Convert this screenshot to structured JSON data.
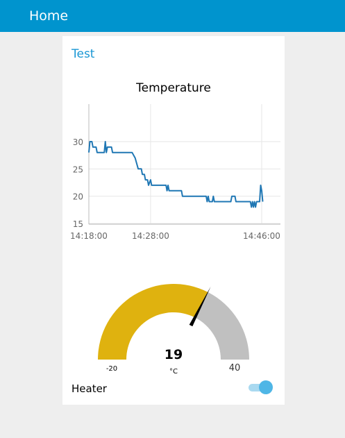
{
  "header": {
    "title": "Home"
  },
  "group": {
    "title": "Test"
  },
  "chart_data": {
    "type": "line",
    "title": "Temperature",
    "xlabel": "",
    "ylabel": "",
    "ylim": [
      15,
      30
    ],
    "yticks": [
      "30",
      "25",
      "20",
      "15"
    ],
    "xticks": [
      "14:18:00",
      "14:28:00",
      "14:46:00"
    ],
    "grid": true,
    "color": "#1f77b4",
    "series": [
      {
        "values": [
          [
            "14:18:00",
            28
          ],
          [
            "14:18:10",
            30
          ],
          [
            "14:18:30",
            30
          ],
          [
            "14:18:40",
            29
          ],
          [
            "14:19:10",
            29
          ],
          [
            "14:19:20",
            28
          ],
          [
            "14:20:30",
            28
          ],
          [
            "14:20:40",
            30
          ],
          [
            "14:20:50",
            28
          ],
          [
            "14:21:00",
            29
          ],
          [
            "14:21:40",
            29
          ],
          [
            "14:21:50",
            28
          ],
          [
            "14:25:00",
            28
          ],
          [
            "14:25:30",
            27
          ],
          [
            "14:26:00",
            25
          ],
          [
            "14:26:30",
            25
          ],
          [
            "14:26:40",
            24
          ],
          [
            "14:27:00",
            24
          ],
          [
            "14:27:10",
            23
          ],
          [
            "14:27:30",
            23
          ],
          [
            "14:27:40",
            22
          ],
          [
            "14:28:00",
            23
          ],
          [
            "14:28:10",
            22
          ],
          [
            "14:30:30",
            22
          ],
          [
            "14:30:40",
            21
          ],
          [
            "14:30:50",
            22
          ],
          [
            "14:31:00",
            21
          ],
          [
            "14:33:00",
            21
          ],
          [
            "14:33:10",
            20
          ],
          [
            "14:37:00",
            20
          ],
          [
            "14:37:10",
            19
          ],
          [
            "14:37:20",
            20
          ],
          [
            "14:37:30",
            19
          ],
          [
            "14:38:00",
            19
          ],
          [
            "14:38:10",
            20
          ],
          [
            "14:38:20",
            19
          ],
          [
            "14:41:00",
            19
          ],
          [
            "14:41:10",
            20
          ],
          [
            "14:41:40",
            20
          ],
          [
            "14:41:50",
            19
          ],
          [
            "14:44:10",
            19
          ],
          [
            "14:44:20",
            18
          ],
          [
            "14:44:30",
            19
          ],
          [
            "14:44:40",
            18
          ],
          [
            "14:44:50",
            19
          ],
          [
            "14:45:00",
            18
          ],
          [
            "14:45:10",
            19
          ],
          [
            "14:45:40",
            19
          ],
          [
            "14:45:50",
            22
          ],
          [
            "14:46:00",
            21
          ],
          [
            "14:46:10",
            19
          ]
        ]
      }
    ]
  },
  "gauge": {
    "value": "19",
    "unit": "°C",
    "min_label": "-20",
    "max_label": "40",
    "min": -20,
    "max": 40,
    "num_value": 19,
    "fill_color": "#dfb20f",
    "track_color": "#c0c0c0"
  },
  "heater": {
    "label": "Heater",
    "on": true
  }
}
